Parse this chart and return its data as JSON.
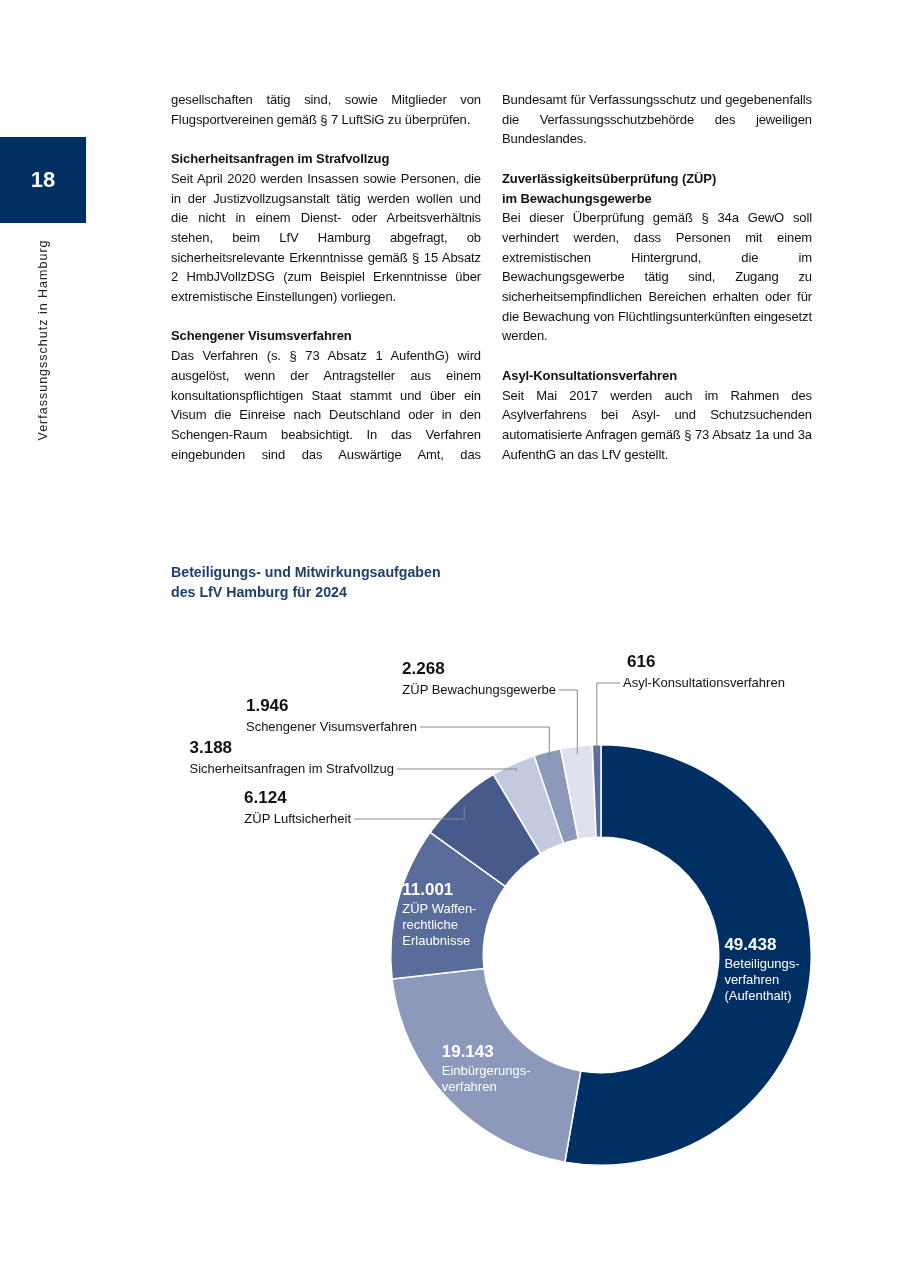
{
  "chart_data": {
    "type": "donut",
    "title": "Beteiligungs- und Mitwirkungsaufgaben des LfV Hamburg für 2024",
    "categories": [
      "Beteiligungs-verfahren (Aufenthalt)",
      "Einbürgerungs-verfahren",
      "ZÜP Waffen-rechtliche Erlaubnisse",
      "ZÜP Luftsicherheit",
      "Sicherheitsanfragen im Strafvollzug",
      "Schengener Visumsverfahren",
      "ZÜP Bewachungsgewerbe",
      "Asyl-Konsultationsverfahren"
    ],
    "values": [
      49438,
      19143,
      11001,
      6124,
      3188,
      1946,
      2268,
      616
    ],
    "colors": [
      "#003063",
      "#8c99bb",
      "#5a6c99",
      "#465b8c",
      "#c3c9de",
      "#8c99bb",
      "#dfe2ee",
      "#5a6c99"
    ],
    "value_labels": [
      "49.438",
      "19.143",
      "11.001",
      "6.124",
      "3.188",
      "1.946",
      "2.268",
      "616"
    ],
    "legend": false,
    "annotations": [
      "18",
      "Verfassungsschutz in Hamburg",
      "gesellschaften tätig sind, sowie Mitglieder von Flugsportvereinen gemäß § 7 LuftSiG zu überprüfen.",
      "Sicherheitsanfragen im Strafvollzug",
      "Seit April 2020 werden Insassen sowie Personen, die in der Justizvollzugsanstalt tätig werden wollen und die nicht in einem Dienst- oder Arbeitsverhältnis stehen, beim LfV Hamburg abgefragt, ob sicherheitsrelevante Erkenntnisse gemäß § 15 Absatz 2 HmbJVollzDSG (zum Beispiel Erkenntnisse über extremistische Einstellungen) vorliegen.",
      "Schengener Visumsverfahren",
      "Das Verfahren (s. § 73 Absatz 1 AufenthG) wird ausgelöst, wenn der Antragsteller aus einem konsultationspflichtigen Staat stammt und über ein Visum die Einreise nach Deutschland oder in den Schengen-Raum beabsichtigt. In das Verfahren eingebunden sind das Auswärtige Amt, das Bundesamt für Verfassungsschutz und gegebenenfalls die Verfassungsschutzbehörde des jeweiligen Bundeslandes.",
      "Zuverlässigkeitsüberprüfung (ZÜP) im Bewachungsgewerbe",
      "Bei dieser Überprüfung gemäß § 34a GewO soll verhindert werden, dass Personen mit einem extremistischen Hintergrund, die im Bewachungsgewerbe tätig sind, Zugang zu sicherheitsempfindlichen Bereichen erhalten oder für die Bewachung von Flüchtlingsunterkünften eingesetzt werden.",
      "Asyl-Konsultationsverfahren",
      "Seit Mai 2017 werden auch im Rahmen des Asylverfahrens bei Asyl- und Schutzsuchenden automatisierte Anfragen gemäß § 73 Absatz 1a und 3a AufenthG an das LfV gestellt."
    ]
  }
}
